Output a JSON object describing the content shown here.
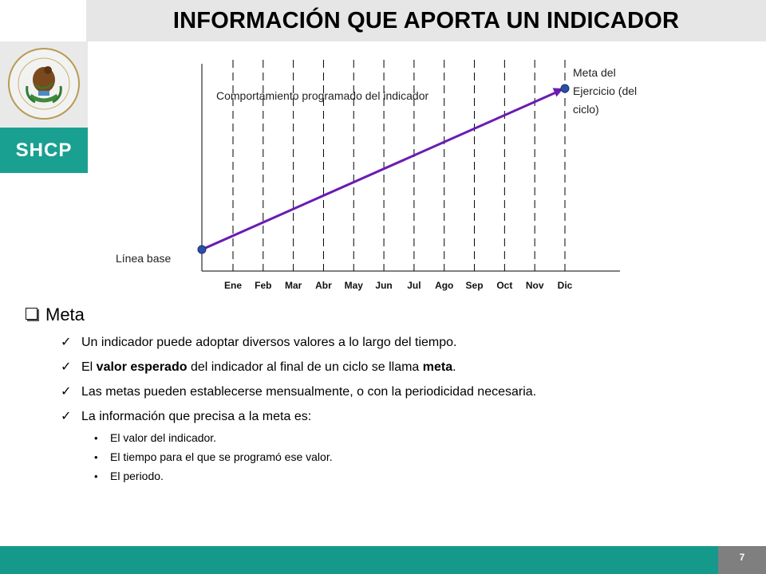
{
  "header": {
    "title": "INFORMACIÓN QUE APORTA UN INDICADOR"
  },
  "brand": {
    "logo_text": "SHCP",
    "accent": "#1aa091",
    "footer_color": "#15998b"
  },
  "chart_data": {
    "type": "line",
    "categories": [
      "Ene",
      "Feb",
      "Mar",
      "Abr",
      "May",
      "Jun",
      "Jul",
      "Ago",
      "Sep",
      "Oct",
      "Nov",
      "Dic"
    ],
    "series": [
      {
        "name": "Comportamiento programado del indicador",
        "start": 0,
        "end": 100,
        "color": "#6a1bb4"
      }
    ],
    "annotations": {
      "baseline": "Línea base",
      "goal": [
        "Meta del",
        "Ejercicio (del",
        "ciclo)"
      ]
    },
    "grid": "vertical-dashed"
  },
  "content": {
    "heading": "Meta",
    "items": [
      {
        "pre": "Un indicador puede adoptar diversos valores a lo largo del tiempo.",
        "bold1": "",
        "mid": "",
        "bold2": "",
        "post": ""
      },
      {
        "pre": "El ",
        "bold1": "valor esperado",
        "mid": " del indicador al final de un ciclo se llama ",
        "bold2": "meta",
        "post": "."
      },
      {
        "pre": "Las metas pueden establecerse mensualmente, o con la periodicidad necesaria.",
        "bold1": "",
        "mid": "",
        "bold2": "",
        "post": ""
      },
      {
        "pre": "La información que precisa a la meta es:",
        "bold1": "",
        "mid": "",
        "bold2": "",
        "post": ""
      }
    ],
    "subitems": [
      "El valor del indicador.",
      "El tiempo para el que se programó ese valor.",
      "El periodo."
    ]
  },
  "footer": {
    "page_number": "7"
  }
}
